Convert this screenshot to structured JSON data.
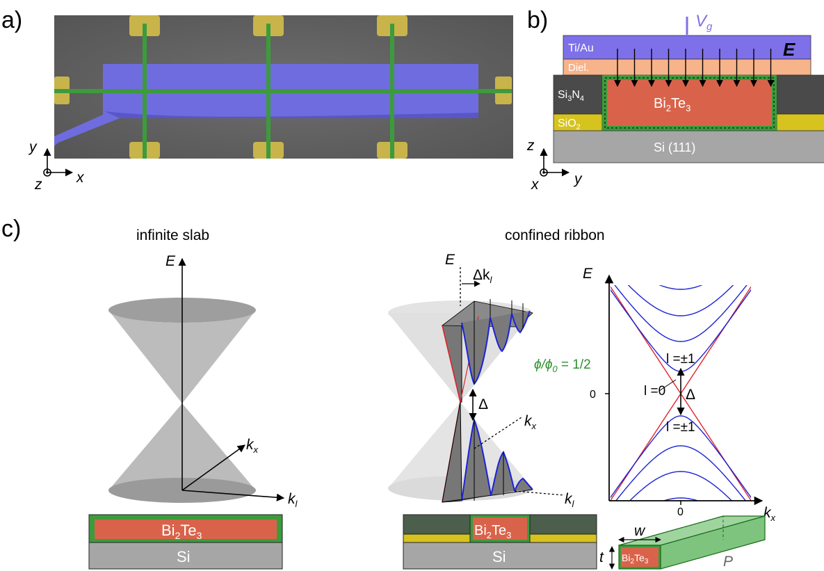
{
  "panels": {
    "a": {
      "label": "a)",
      "axes": {
        "y": "y",
        "x": "x",
        "z": "z"
      }
    },
    "b": {
      "label": "b)",
      "gate_voltage": {
        "main": "V",
        "sub": "g"
      },
      "layers": {
        "ti_au": "Ti/Au",
        "dielectric": "Diel.",
        "si3n4": {
          "a": "Si",
          "b": "3",
          "c": "N",
          "d": "4"
        },
        "sio2": {
          "a": "SiO",
          "b": "2"
        },
        "bi2te3": {
          "a": "Bi",
          "b": "2",
          "c": "Te",
          "d": "3"
        },
        "si111": "Si (111)"
      },
      "field": "E",
      "axes": {
        "z": "z",
        "y": "y",
        "x": "x"
      }
    },
    "c": {
      "label": "c)",
      "infinite_slab": {
        "title": "infinite slab",
        "axes": {
          "E": "E",
          "kx": {
            "main": "k",
            "sub": "x"
          },
          "kl": {
            "main": "k",
            "sub": "l"
          }
        },
        "substrate": "Si",
        "film": {
          "a": "Bi",
          "b": "2",
          "c": "Te",
          "d": "3"
        }
      },
      "confined_ribbon": {
        "title": "confined ribbon",
        "axes": {
          "E": "E",
          "kx": {
            "main": "k",
            "sub": "x"
          },
          "kl": {
            "main": "k",
            "sub": "l"
          }
        },
        "delta_k": {
          "a": "Δk",
          "b": "l"
        },
        "gap": "Δ",
        "flux": {
          "phi": "ϕ/ϕ",
          "sub": "0",
          "value": " = 1/2"
        },
        "substrate": "Si",
        "film": {
          "a": "Bi",
          "b": "2",
          "c": "Te",
          "d": "3"
        }
      },
      "band_plot": {
        "ylabel": "E",
        "xlabel": {
          "main": "k",
          "sub": "x"
        },
        "ytick": "0",
        "xtick": "0",
        "gap": "Δ",
        "labels": {
          "l1_upper": "l =±1",
          "l0": "l =0",
          "l1_lower": "l =±1"
        }
      },
      "ribbon_3d": {
        "w": "w",
        "t": "t",
        "P": "P",
        "film": {
          "a": "Bi",
          "b": "2",
          "c": "Te",
          "d": "3"
        }
      }
    }
  },
  "colors": {
    "gold": "#c8b44a",
    "blue": "#6f6ce0",
    "green": "#3c9b3c",
    "bi2te3": "#d9634a",
    "gate": "#7e70e8",
    "dielectric": "#f7b38a",
    "sin": "#4a4a4a",
    "sio2": "#d6c31d",
    "si": "#a6a6a6"
  }
}
